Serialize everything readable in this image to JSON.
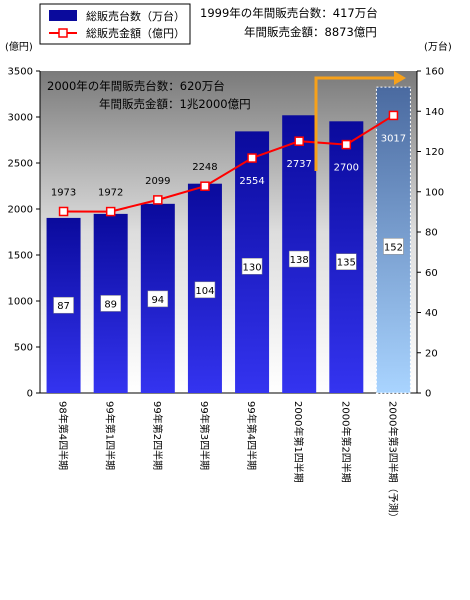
{
  "chart_data": {
    "type": "bar",
    "categories": [
      "98年第4四半期",
      "99年第1四半期",
      "99年第2四半期",
      "99年第3四半期",
      "99年第4四半期",
      "2000年第1四半期",
      "2000年第2四半期",
      "2000年第3四半期（予測）"
    ],
    "series": [
      {
        "name": "総販売台数（万台）",
        "axis": "right",
        "values": [
          87,
          89,
          94,
          104,
          130,
          138,
          135,
          152
        ]
      },
      {
        "name": "総販売金額（億円）",
        "axis": "left",
        "values": [
          1973,
          1972,
          2099,
          2248,
          2554,
          2737,
          2700,
          3017
        ]
      }
    ],
    "y_left_unit": "(億円)",
    "y_right_unit": "(万台)",
    "y_left_lim": [
      0,
      3500
    ],
    "y_left_ticks": [
      0,
      500,
      1000,
      1500,
      2000,
      2500,
      3000,
      3500
    ],
    "y_right_lim": [
      0,
      160
    ],
    "y_right_ticks": [
      0,
      20,
      40,
      60,
      80,
      100,
      120,
      140,
      160
    ],
    "annotations": {
      "note_1999_line1": "1999年の年間販売台数：417万台",
      "note_1999_line2": "年間販売金額：8873億円",
      "note_2000_line1": "2000年の年間販売台数：620万台",
      "note_2000_line2": "年間販売金額：1兆2000億円"
    },
    "colors": {
      "bar_dark": "#0a0a9c",
      "bar_light": "#3434f0",
      "forecast_dark": "#4a6aa0",
      "forecast_light": "#a9d4ff",
      "line": "#ff0000",
      "arrow": "#f7a11a"
    },
    "legend_position": "top-left",
    "grid": false
  }
}
